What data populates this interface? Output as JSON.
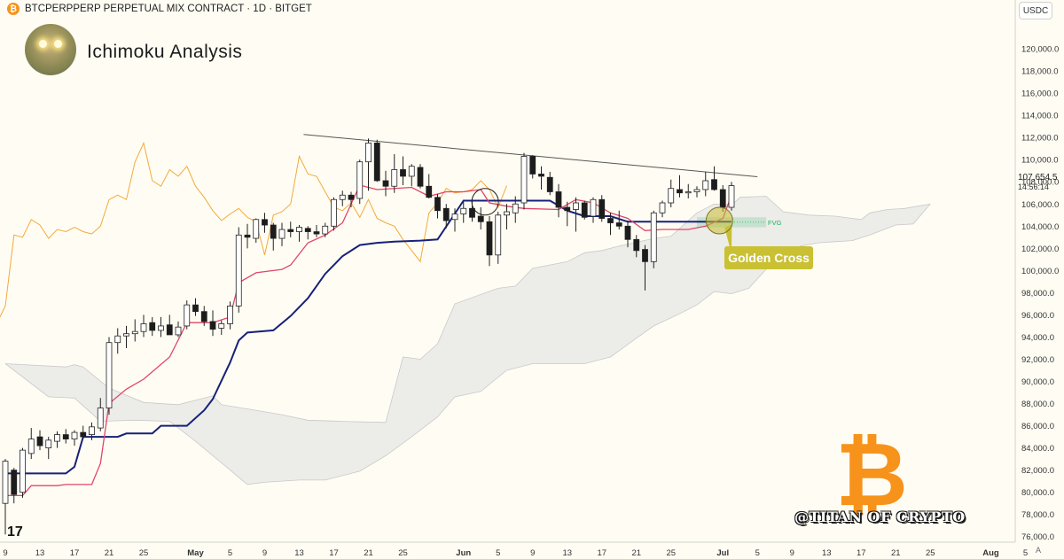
{
  "header": {
    "coin_icon": "bitcoin-icon",
    "symbol_line": "BTCPERPPERP PERPETUAL MIX CONTRACT · 1D · BITGET"
  },
  "title": "Ichimoku Analysis",
  "currency": "USDC",
  "price_badge": {
    "price": "107,654.5",
    "countdown": "14:56:14"
  },
  "annotations": {
    "golden_cross": "Golden Cross",
    "fvg": "FVG"
  },
  "watermark": "@TITAN OF CRYPTO",
  "logo_char": "₿",
  "tv_logo": "17",
  "axis_mode": "A",
  "colors": {
    "bg": "#fffdf3",
    "tenkan": "#e0456b",
    "kijun": "#16217a",
    "chikou": "#f3a93c",
    "cloud": "#e9e9e6",
    "golden": "#c9c033",
    "bitcoin": "#f7931a",
    "fvg": "#19b35a"
  },
  "chart_data": {
    "type": "candlestick",
    "y_ticks": [
      "76,000.0",
      "78,000.0",
      "80,000.0",
      "82,000.0",
      "84,000.0",
      "86,000.0",
      "88,000.0",
      "90,000.0",
      "92,000.0",
      "94,000.0",
      "96,000.0",
      "98,000.0",
      "100,000.0",
      "102,000.0",
      "104,000.0",
      "106,000.0",
      "108,000.0",
      "110,000.0",
      "112,000.0",
      "114,000.0",
      "116,000.0",
      "118,000.0",
      "120,000.0"
    ],
    "ylim": [
      75500,
      122000
    ],
    "x_ticks": [
      {
        "label": "9",
        "day": 0
      },
      {
        "label": "13",
        "day": 4
      },
      {
        "label": "17",
        "day": 8
      },
      {
        "label": "21",
        "day": 12
      },
      {
        "label": "25",
        "day": 16
      },
      {
        "label": "May",
        "day": 22
      },
      {
        "label": "5",
        "day": 26
      },
      {
        "label": "9",
        "day": 30
      },
      {
        "label": "13",
        "day": 34
      },
      {
        "label": "17",
        "day": 38
      },
      {
        "label": "21",
        "day": 42
      },
      {
        "label": "25",
        "day": 46
      },
      {
        "label": "Jun",
        "day": 53
      },
      {
        "label": "5",
        "day": 57
      },
      {
        "label": "9",
        "day": 61
      },
      {
        "label": "13",
        "day": 65
      },
      {
        "label": "17",
        "day": 69
      },
      {
        "label": "21",
        "day": 73
      },
      {
        "label": "25",
        "day": 77
      },
      {
        "label": "Jul",
        "day": 83
      },
      {
        "label": "5",
        "day": 87
      },
      {
        "label": "9",
        "day": 91
      },
      {
        "label": "13",
        "day": 95
      },
      {
        "label": "17",
        "day": 99
      },
      {
        "label": "21",
        "day": 103
      },
      {
        "label": "25",
        "day": 107
      },
      {
        "label": "Aug",
        "day": 114
      },
      {
        "label": "5",
        "day": 118
      }
    ],
    "candles": [
      [
        0,
        79000,
        83000,
        76200,
        82800
      ],
      [
        1,
        82000,
        82200,
        79000,
        79800
      ],
      [
        2,
        80000,
        84000,
        79500,
        83800
      ],
      [
        3,
        83500,
        85800,
        83000,
        84800
      ],
      [
        4,
        85000,
        85600,
        83800,
        84200
      ],
      [
        5,
        84000,
        85000,
        83000,
        84700
      ],
      [
        6,
        84600,
        85500,
        84000,
        85200
      ],
      [
        7,
        85200,
        85700,
        84400,
        84800
      ],
      [
        8,
        84800,
        85600,
        84200,
        85400
      ],
      [
        9,
        85400,
        86000,
        84800,
        85000
      ],
      [
        10,
        85200,
        86300,
        84700,
        85900
      ],
      [
        11,
        85800,
        88500,
        85500,
        87600
      ],
      [
        12,
        87600,
        94000,
        87000,
        93500
      ],
      [
        13,
        93500,
        94800,
        92500,
        94100
      ],
      [
        14,
        94100,
        95000,
        93000,
        94300
      ],
      [
        15,
        94300,
        95600,
        93600,
        94500
      ],
      [
        16,
        94500,
        96000,
        94000,
        95200
      ],
      [
        17,
        95300,
        95800,
        94100,
        94600
      ],
      [
        18,
        94600,
        95800,
        94000,
        95000
      ],
      [
        19,
        95100,
        96000,
        94200,
        94200
      ],
      [
        20,
        94200,
        95400,
        94000,
        94900
      ],
      [
        21,
        95000,
        97300,
        94700,
        96900
      ],
      [
        22,
        96900,
        97500,
        95900,
        96300
      ],
      [
        23,
        96300,
        96800,
        95000,
        95400
      ],
      [
        24,
        95400,
        96400,
        94100,
        94700
      ],
      [
        25,
        94800,
        95500,
        94200,
        95200
      ],
      [
        26,
        95200,
        97200,
        94700,
        96800
      ],
      [
        27,
        96800,
        103900,
        96200,
        103200
      ],
      [
        28,
        103200,
        104200,
        102000,
        103000
      ],
      [
        29,
        102900,
        104700,
        102500,
        104600
      ],
      [
        30,
        104600,
        105200,
        103400,
        104100
      ],
      [
        31,
        104100,
        104300,
        101800,
        102900
      ],
      [
        32,
        102900,
        104300,
        102200,
        103700
      ],
      [
        33,
        103700,
        104400,
        103000,
        103500
      ],
      [
        34,
        103500,
        104100,
        102600,
        103900
      ],
      [
        35,
        103800,
        104000,
        102800,
        103500
      ],
      [
        36,
        103500,
        104100,
        103000,
        103300
      ],
      [
        37,
        103300,
        104300,
        103000,
        104000
      ],
      [
        38,
        104000,
        106600,
        103600,
        106400
      ],
      [
        39,
        106400,
        107200,
        105800,
        106800
      ],
      [
        40,
        106800,
        107100,
        105700,
        106400
      ],
      [
        41,
        106500,
        110000,
        106000,
        109800
      ],
      [
        42,
        109800,
        111900,
        107200,
        111500
      ],
      [
        43,
        111500,
        111800,
        108000,
        108100
      ],
      [
        44,
        108100,
        109000,
        106700,
        107600
      ],
      [
        45,
        107600,
        110500,
        107000,
        109100
      ],
      [
        46,
        109100,
        110300,
        107700,
        108500
      ],
      [
        47,
        108500,
        109600,
        107600,
        109400
      ],
      [
        48,
        109300,
        109600,
        107400,
        107600
      ],
      [
        49,
        107600,
        108700,
        106500,
        106600
      ],
      [
        50,
        106600,
        106900,
        104700,
        105400
      ],
      [
        51,
        105600,
        106000,
        103800,
        104500
      ],
      [
        52,
        104600,
        105600,
        103500,
        105100
      ],
      [
        53,
        105100,
        106200,
        104300,
        105600
      ],
      [
        54,
        105600,
        106500,
        104400,
        104800
      ],
      [
        55,
        104900,
        105700,
        103700,
        104400
      ],
      [
        56,
        104400,
        104900,
        100400,
        101400
      ],
      [
        57,
        101400,
        105300,
        100600,
        105000
      ],
      [
        58,
        105000,
        106000,
        103700,
        105300
      ],
      [
        59,
        105200,
        106700,
        104300,
        106000
      ],
      [
        60,
        106100,
        110600,
        105500,
        110300
      ],
      [
        61,
        110300,
        110400,
        108300,
        108700
      ],
      [
        62,
        108700,
        109400,
        107300,
        108500
      ],
      [
        63,
        108400,
        108900,
        106800,
        107100
      ],
      [
        64,
        107100,
        107800,
        104800,
        105700
      ],
      [
        65,
        105700,
        106200,
        104000,
        105400
      ],
      [
        66,
        105500,
        106600,
        103500,
        106100
      ],
      [
        67,
        106100,
        106300,
        104600,
        104800
      ],
      [
        68,
        104900,
        106600,
        104300,
        106400
      ],
      [
        69,
        106400,
        106800,
        104400,
        104700
      ],
      [
        70,
        104700,
        105200,
        103200,
        104300
      ],
      [
        71,
        104300,
        105400,
        103700,
        104000
      ],
      [
        72,
        104000,
        104500,
        102100,
        102800
      ],
      [
        73,
        102800,
        103200,
        101200,
        101800
      ],
      [
        74,
        101900,
        102300,
        98200,
        100800
      ],
      [
        75,
        100800,
        105400,
        100200,
        105200
      ],
      [
        76,
        105200,
        106300,
        104800,
        106100
      ],
      [
        77,
        106100,
        108200,
        105700,
        107400
      ],
      [
        78,
        107300,
        108600,
        106600,
        107000
      ],
      [
        79,
        107000,
        107800,
        106500,
        107100
      ],
      [
        80,
        107100,
        107600,
        106600,
        107300
      ],
      [
        81,
        107300,
        108900,
        106700,
        108100
      ],
      [
        82,
        108200,
        109400,
        107200,
        107300
      ],
      [
        83,
        107300,
        107700,
        105300,
        105700
      ],
      [
        84,
        105700,
        108000,
        105400,
        107650
      ]
    ],
    "tenkan": [
      [
        0,
        79700
      ],
      [
        2,
        79700
      ],
      [
        3,
        80600
      ],
      [
        6,
        80600
      ],
      [
        7,
        80700
      ],
      [
        10,
        80700
      ],
      [
        11,
        82600
      ],
      [
        12,
        88000
      ],
      [
        14,
        89300
      ],
      [
        16,
        90200
      ],
      [
        19,
        92200
      ],
      [
        21,
        95300
      ],
      [
        24,
        95300
      ],
      [
        26,
        95800
      ],
      [
        27,
        98900
      ],
      [
        29,
        99800
      ],
      [
        32,
        100100
      ],
      [
        33,
        100500
      ],
      [
        35,
        102500
      ],
      [
        37,
        103200
      ],
      [
        39,
        104300
      ],
      [
        41,
        107700
      ],
      [
        43,
        107300
      ],
      [
        47,
        107500
      ],
      [
        49,
        106700
      ],
      [
        51,
        107100
      ],
      [
        53,
        107100
      ],
      [
        55,
        107300
      ],
      [
        56,
        106100
      ],
      [
        58,
        105800
      ],
      [
        60,
        105600
      ],
      [
        64,
        105500
      ],
      [
        66,
        106400
      ],
      [
        68,
        106100
      ],
      [
        70,
        105200
      ],
      [
        72,
        104700
      ],
      [
        74,
        103600
      ],
      [
        76,
        103700
      ],
      [
        79,
        103700
      ],
      [
        81,
        104000
      ],
      [
        83,
        104700
      ],
      [
        84,
        106800
      ]
    ],
    "kijun": [
      [
        0,
        81700
      ],
      [
        7,
        81700
      ],
      [
        8,
        82300
      ],
      [
        9,
        85000
      ],
      [
        13,
        85000
      ],
      [
        14,
        85300
      ],
      [
        17,
        85300
      ],
      [
        18,
        86000
      ],
      [
        21,
        86000
      ],
      [
        23,
        87400
      ],
      [
        24,
        88400
      ],
      [
        26,
        91700
      ],
      [
        27,
        93700
      ],
      [
        28,
        94400
      ],
      [
        31,
        94600
      ],
      [
        33,
        95900
      ],
      [
        35,
        97500
      ],
      [
        37,
        99700
      ],
      [
        39,
        101300
      ],
      [
        41,
        102300
      ],
      [
        43,
        102500
      ],
      [
        45,
        102600
      ],
      [
        48,
        102700
      ],
      [
        50,
        102800
      ],
      [
        53,
        106300
      ],
      [
        63,
        106300
      ],
      [
        65,
        105400
      ],
      [
        67,
        104900
      ],
      [
        70,
        104900
      ],
      [
        72,
        104400
      ],
      [
        84,
        104400
      ]
    ],
    "chikou_offset": -26,
    "cloud_upper": [
      [
        0,
        91600
      ],
      [
        7,
        91300
      ],
      [
        8,
        91500
      ],
      [
        9,
        91300
      ],
      [
        12,
        89400
      ],
      [
        16,
        88100
      ],
      [
        20,
        87900
      ],
      [
        24,
        88700
      ],
      [
        25,
        87900
      ],
      [
        29,
        87400
      ],
      [
        32,
        87000
      ],
      [
        35,
        86500
      ],
      [
        39,
        86400
      ],
      [
        44,
        86300
      ],
      [
        46,
        92200
      ],
      [
        48,
        92000
      ],
      [
        50,
        93400
      ],
      [
        52,
        97000
      ],
      [
        57,
        98400
      ],
      [
        59,
        98600
      ],
      [
        61,
        100200
      ],
      [
        65,
        100800
      ],
      [
        67,
        101600
      ],
      [
        69,
        101800
      ],
      [
        71,
        102200
      ],
      [
        75,
        102900
      ],
      [
        77,
        103100
      ],
      [
        80,
        105200
      ],
      [
        82,
        106000
      ],
      [
        84,
        105900
      ],
      [
        85,
        106600
      ],
      [
        88,
        106700
      ],
      [
        90,
        105300
      ],
      [
        93,
        105000
      ],
      [
        96,
        104900
      ],
      [
        99,
        104600
      ],
      [
        100,
        105200
      ],
      [
        102,
        105500
      ],
      [
        104,
        105600
      ],
      [
        107,
        106000
      ]
    ],
    "cloud_lower": [
      [
        0,
        91600
      ],
      [
        5,
        88600
      ],
      [
        8,
        88500
      ],
      [
        11,
        86400
      ],
      [
        15,
        86500
      ],
      [
        19,
        86400
      ],
      [
        22,
        84600
      ],
      [
        26,
        82000
      ],
      [
        28,
        80700
      ],
      [
        30,
        80900
      ],
      [
        34,
        81100
      ],
      [
        37,
        81100
      ],
      [
        41,
        81900
      ],
      [
        44,
        83300
      ],
      [
        47,
        85000
      ],
      [
        50,
        86800
      ],
      [
        52,
        88600
      ],
      [
        55,
        89100
      ],
      [
        58,
        91000
      ],
      [
        61,
        91600
      ],
      [
        64,
        91600
      ],
      [
        67,
        91600
      ],
      [
        70,
        92200
      ],
      [
        73,
        93900
      ],
      [
        75,
        95000
      ],
      [
        78,
        96100
      ],
      [
        80,
        96900
      ],
      [
        82,
        98100
      ],
      [
        84,
        97900
      ],
      [
        86,
        98400
      ],
      [
        88,
        100100
      ],
      [
        90,
        101700
      ],
      [
        92,
        102200
      ],
      [
        94,
        102500
      ],
      [
        96,
        102600
      ],
      [
        98,
        102700
      ],
      [
        100,
        103200
      ],
      [
        103,
        104100
      ],
      [
        105,
        104200
      ],
      [
        107,
        106000
      ]
    ],
    "trendline": [
      [
        41,
        111800
      ],
      [
        85,
        108600
      ]
    ],
    "fvg_zone": {
      "from_day": 80,
      "to_day": 88,
      "low": 103900,
      "high": 104800
    }
  }
}
